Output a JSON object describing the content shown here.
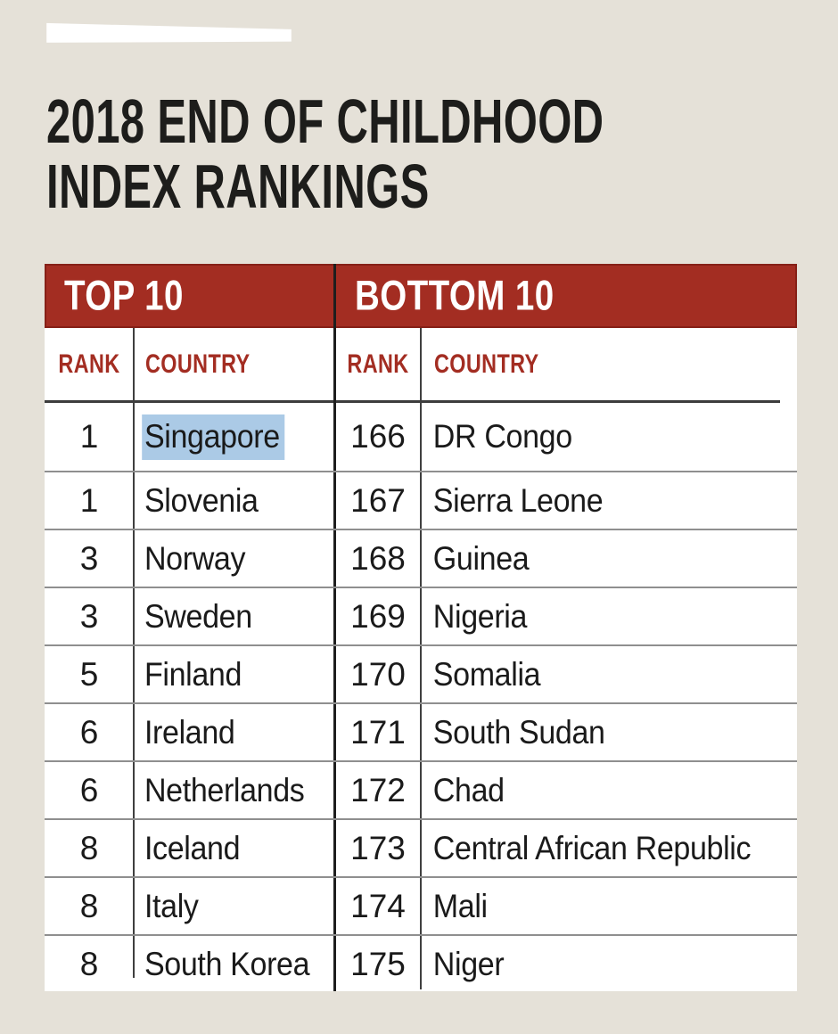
{
  "title": {
    "line1": "2018 END OF CHILDHOOD",
    "line2": "INDEX RANKINGS"
  },
  "table": {
    "top_section_label": "TOP 10",
    "bottom_section_label": "BOTTOM 10",
    "rank_header": "RANK",
    "country_header": "COUNTRY",
    "rows": [
      {
        "top": {
          "rank": "1",
          "country": "Singapore",
          "highlighted": true
        },
        "bottom": {
          "rank": "166",
          "country": "DR Congo"
        }
      },
      {
        "top": {
          "rank": "1",
          "country": "Slovenia"
        },
        "bottom": {
          "rank": "167",
          "country": "Sierra Leone"
        }
      },
      {
        "top": {
          "rank": "3",
          "country": "Norway"
        },
        "bottom": {
          "rank": "168",
          "country": "Guinea"
        }
      },
      {
        "top": {
          "rank": "3",
          "country": "Sweden"
        },
        "bottom": {
          "rank": "169",
          "country": "Nigeria"
        }
      },
      {
        "top": {
          "rank": "5",
          "country": "Finland"
        },
        "bottom": {
          "rank": "170",
          "country": "Somalia"
        }
      },
      {
        "top": {
          "rank": "6",
          "country": "Ireland"
        },
        "bottom": {
          "rank": "171",
          "country": "South Sudan"
        }
      },
      {
        "top": {
          "rank": "6",
          "country": "Netherlands"
        },
        "bottom": {
          "rank": "172",
          "country": "Chad"
        }
      },
      {
        "top": {
          "rank": "8",
          "country": "Iceland"
        },
        "bottom": {
          "rank": "173",
          "country": "Central African Republic"
        }
      },
      {
        "top": {
          "rank": "8",
          "country": "Italy"
        },
        "bottom": {
          "rank": "174",
          "country": "Mali"
        }
      },
      {
        "top": {
          "rank": "8",
          "country": "South Korea"
        },
        "bottom": {
          "rank": "175",
          "country": "Niger"
        }
      }
    ]
  },
  "colors": {
    "page_background": "#E5E1D8",
    "table_background": "#FFFFFF",
    "header_red": "#A32D22",
    "header_text": "#FFFFFF",
    "column_header_red": "#A32D22",
    "body_text": "#1A1A1A",
    "row_separator": "#8F8F8F",
    "selection_highlight": "#ABCAE6"
  },
  "chart_data": {
    "type": "table",
    "title": "2018 END OF CHILDHOOD INDEX RANKINGS",
    "tables": [
      {
        "section": "TOP 10",
        "columns": [
          "RANK",
          "COUNTRY"
        ],
        "rows": [
          [
            1,
            "Singapore"
          ],
          [
            1,
            "Slovenia"
          ],
          [
            3,
            "Norway"
          ],
          [
            3,
            "Sweden"
          ],
          [
            5,
            "Finland"
          ],
          [
            6,
            "Ireland"
          ],
          [
            6,
            "Netherlands"
          ],
          [
            8,
            "Iceland"
          ],
          [
            8,
            "Italy"
          ],
          [
            8,
            "South Korea"
          ]
        ]
      },
      {
        "section": "BOTTOM 10",
        "columns": [
          "RANK",
          "COUNTRY"
        ],
        "rows": [
          [
            166,
            "DR Congo"
          ],
          [
            167,
            "Sierra Leone"
          ],
          [
            168,
            "Guinea"
          ],
          [
            169,
            "Nigeria"
          ],
          [
            170,
            "Somalia"
          ],
          [
            171,
            "South Sudan"
          ],
          [
            172,
            "Chad"
          ],
          [
            173,
            "Central African Republic"
          ],
          [
            174,
            "Mali"
          ],
          [
            175,
            "Niger"
          ]
        ]
      }
    ],
    "annotations": [
      "Singapore is shown with a blue text-selection highlight"
    ]
  }
}
